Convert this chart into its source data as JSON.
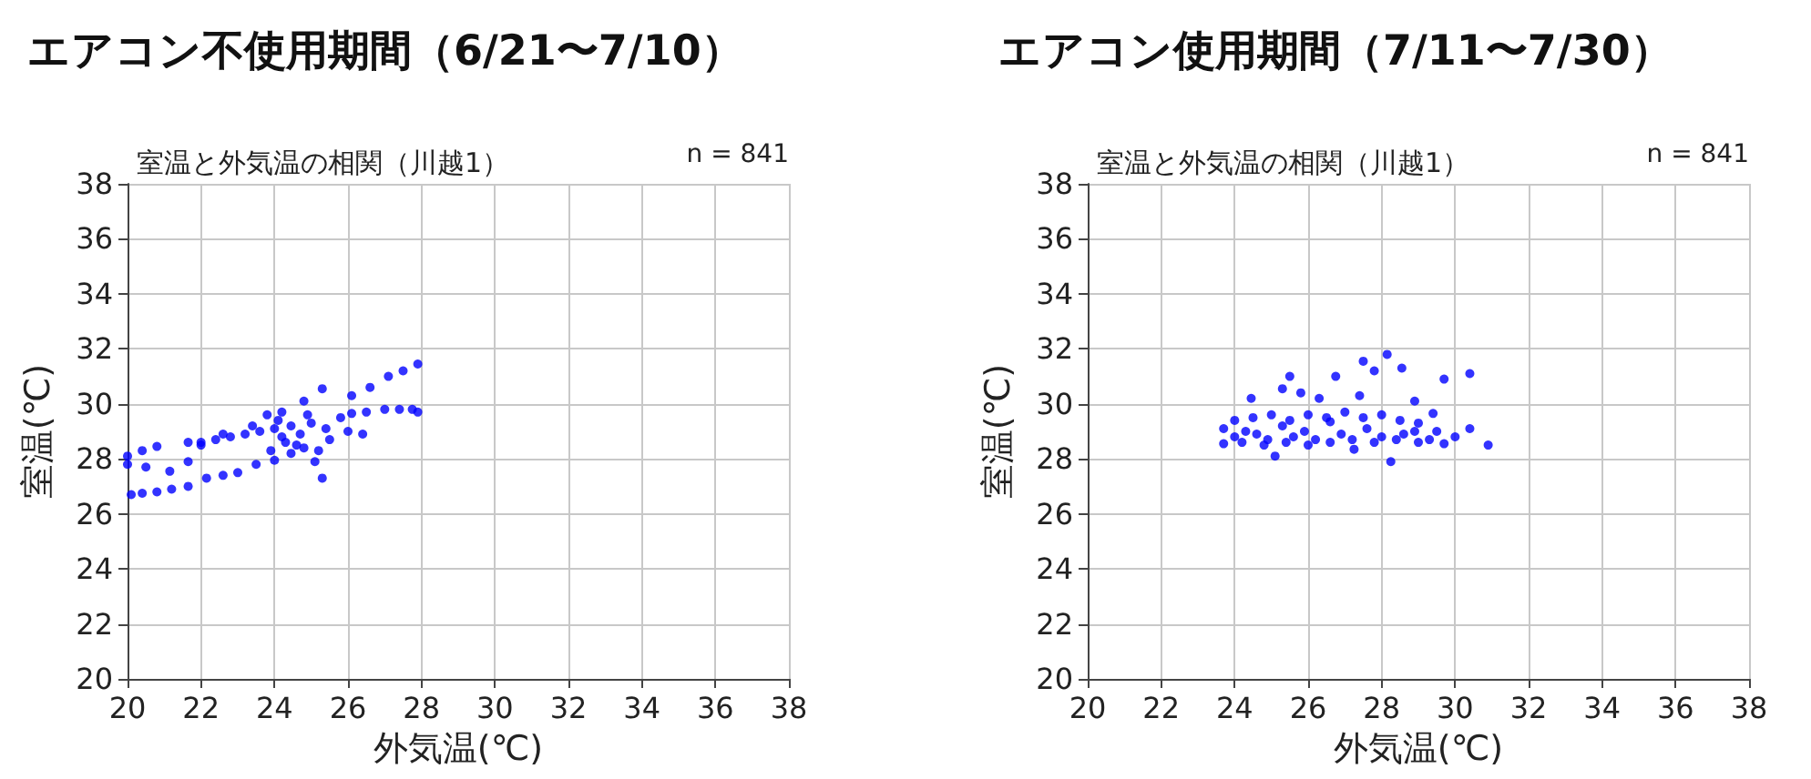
{
  "chart_data": [
    {
      "type": "scatter",
      "title": "エアコン不使用期間（6/21〜7/10）",
      "subtitle": "室温と外気温の相関（川越1）",
      "annotations": [
        "n = 841"
      ],
      "xlabel": "外気温(℃)",
      "ylabel": "室温(℃)",
      "xlim": [
        20,
        38
      ],
      "ylim": [
        20,
        38
      ],
      "xticks": [
        20,
        22,
        24,
        26,
        28,
        30,
        32,
        34,
        36,
        38
      ],
      "yticks": [
        20,
        22,
        24,
        26,
        28,
        30,
        32,
        34,
        36,
        38
      ],
      "grid": true,
      "marker": "circle",
      "series": [
        {
          "color": "#0000ff",
          "x": [
            20.1,
            20.4,
            20.8,
            21.2,
            21.65,
            22.15,
            22.6,
            23.0,
            23.5,
            24.0,
            24.45,
            24.8,
            20.0,
            20.5,
            21.15,
            21.65,
            21.65,
            22.0,
            22.4,
            22.8,
            23.2,
            23.6,
            24.0,
            24.2,
            24.45,
            24.7,
            25.0,
            25.4,
            25.8,
            26.1,
            26.5,
            27.0,
            27.4,
            27.75,
            27.9,
            20.0,
            20.4,
            20.8,
            22.0,
            22.6,
            23.4,
            24.2,
            24.8,
            25.3,
            26.1,
            26.6,
            27.1,
            27.5,
            27.9,
            25.3,
            25.1,
            25.2,
            24.6,
            24.9,
            25.5,
            26.0,
            26.4,
            23.9,
            24.3,
            24.1,
            23.8
          ],
          "values": [
            26.7,
            26.75,
            26.8,
            26.9,
            27.0,
            27.3,
            27.4,
            27.5,
            27.8,
            27.95,
            28.2,
            28.4,
            27.8,
            27.7,
            27.55,
            27.9,
            28.6,
            28.6,
            28.7,
            28.8,
            28.9,
            29.0,
            29.1,
            28.8,
            29.2,
            28.9,
            29.3,
            29.1,
            29.5,
            29.65,
            29.7,
            29.8,
            29.8,
            29.8,
            29.7,
            28.1,
            28.3,
            28.45,
            28.5,
            28.9,
            29.2,
            29.7,
            30.1,
            30.55,
            30.3,
            30.6,
            31.0,
            31.2,
            31.45,
            27.3,
            27.9,
            28.3,
            28.5,
            29.6,
            28.7,
            29.0,
            28.9,
            28.3,
            28.6,
            29.4,
            29.6
          ]
        }
      ]
    },
    {
      "type": "scatter",
      "title": "エアコン使用期間（7/11〜7/30）",
      "subtitle": "室温と外気温の相関（川越1）",
      "annotations": [
        "n = 841"
      ],
      "xlabel": "外気温(℃)",
      "ylabel": "室温(℃)",
      "xlim": [
        20,
        38
      ],
      "ylim": [
        20,
        38
      ],
      "xticks": [
        20,
        22,
        24,
        26,
        28,
        30,
        32,
        34,
        36,
        38
      ],
      "yticks": [
        20,
        22,
        24,
        26,
        28,
        30,
        32,
        34,
        36,
        38
      ],
      "grid": true,
      "marker": "circle",
      "series": [
        {
          "color": "#0000ff",
          "x": [
            23.7,
            23.7,
            24.0,
            24.3,
            24.6,
            24.9,
            25.1,
            25.3,
            25.6,
            25.9,
            26.2,
            26.6,
            26.9,
            27.25,
            27.6,
            28.0,
            28.25,
            28.6,
            28.9,
            29.3,
            29.7,
            30.0,
            30.4,
            30.9,
            24.0,
            24.5,
            25.0,
            25.5,
            26.0,
            26.5,
            27.0,
            27.5,
            28.0,
            28.5,
            29.0,
            29.5,
            24.2,
            24.8,
            25.4,
            26.0,
            26.6,
            27.2,
            27.8,
            28.4,
            29.0,
            30.4,
            29.7,
            28.15,
            27.5,
            26.75,
            25.5,
            24.45,
            25.3,
            28.55,
            28.9,
            29.4,
            26.3,
            27.4,
            27.8,
            25.8
          ],
          "values": [
            29.1,
            28.55,
            28.8,
            29.0,
            28.9,
            28.7,
            28.1,
            29.2,
            28.8,
            29.0,
            28.7,
            29.35,
            28.9,
            28.35,
            29.1,
            28.8,
            27.9,
            28.9,
            29.0,
            28.7,
            28.55,
            28.8,
            29.1,
            28.5,
            29.4,
            29.5,
            29.6,
            29.4,
            29.6,
            29.5,
            29.7,
            29.5,
            29.6,
            29.4,
            29.3,
            29.0,
            28.6,
            28.5,
            28.6,
            28.5,
            28.6,
            28.7,
            28.6,
            28.7,
            28.6,
            31.1,
            30.9,
            31.8,
            31.55,
            31.0,
            31.0,
            30.2,
            30.55,
            31.3,
            30.1,
            29.65,
            30.2,
            30.3,
            31.2,
            30.4
          ]
        }
      ]
    }
  ]
}
